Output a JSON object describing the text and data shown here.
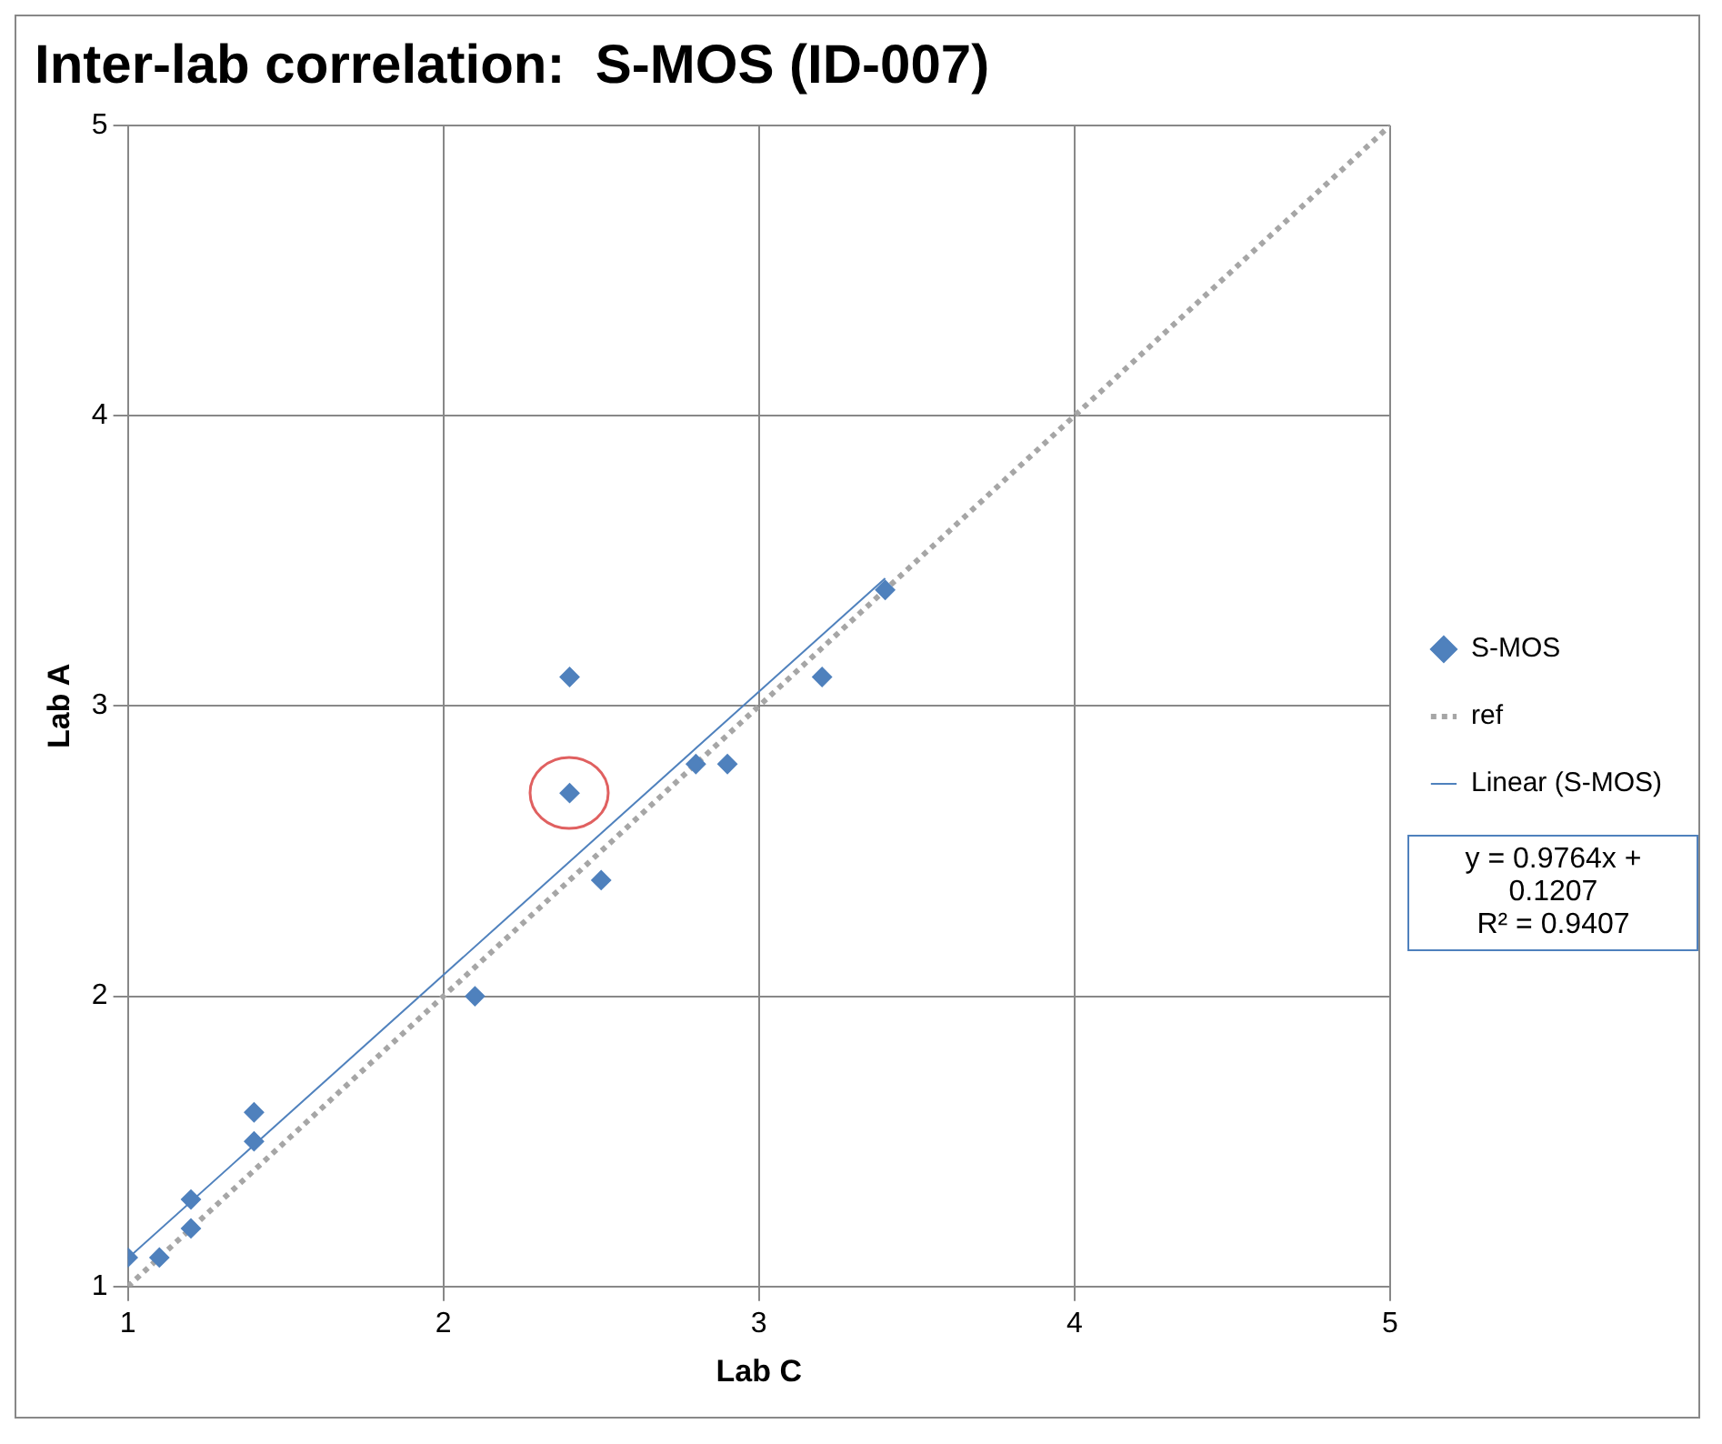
{
  "chart_data": {
    "type": "scatter",
    "title": "Inter-lab correlation:  S-MOS (ID-007)",
    "xlabel": "Lab C",
    "ylabel": "Lab A",
    "xlim": [
      1,
      5
    ],
    "xticks": [
      1,
      2,
      3,
      4,
      5
    ],
    "ylim": [
      1,
      5
    ],
    "yticks": [
      1,
      2,
      3,
      4,
      5
    ],
    "grid": true,
    "legend": "right",
    "series": [
      {
        "name": "S-MOS",
        "type": "scatter",
        "color": "#4f81bd",
        "marker": "diamond",
        "x": [
          1.0,
          1.1,
          1.2,
          1.2,
          1.4,
          1.4,
          2.1,
          2.4,
          2.4,
          2.5,
          2.8,
          2.9,
          3.2,
          3.4
        ],
        "values": [
          1.1,
          1.1,
          1.2,
          1.3,
          1.5,
          1.6,
          2.0,
          3.1,
          2.7,
          2.4,
          2.8,
          2.8,
          3.1,
          3.4
        ]
      },
      {
        "name": "ref",
        "type": "line",
        "color": "#a6a6a6",
        "marker": "none",
        "line_style": "dotted",
        "x": [
          1,
          5
        ],
        "values": [
          1,
          5
        ]
      },
      {
        "name": "Linear (S-MOS)",
        "type": "line",
        "color": "#4f81bd",
        "marker": "none",
        "line_style": "solid",
        "x": [
          1,
          3.4
        ],
        "values": [
          1.097,
          3.44
        ]
      }
    ],
    "annotations": [
      "y = 0.9764x + 0.1207",
      "R² = 0.9407"
    ]
  }
}
